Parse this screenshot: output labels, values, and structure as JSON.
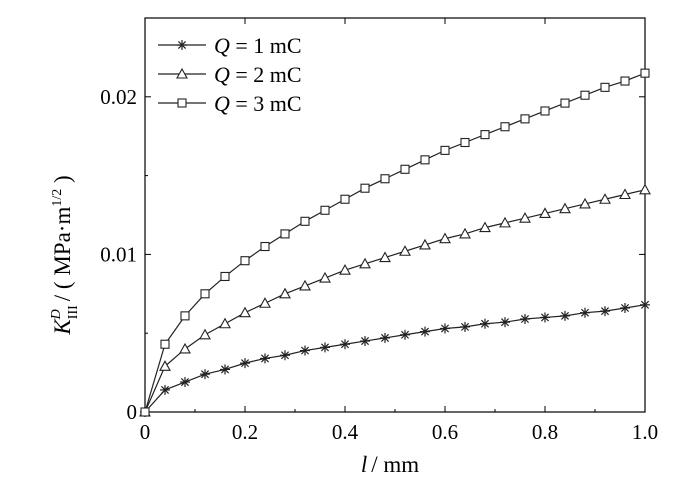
{
  "chart_data": {
    "type": "line",
    "xlabel_var": "l",
    "xlabel_unit": "/ mm",
    "ylabel_main": "K",
    "ylabel_sub": "III",
    "ylabel_sup": "D",
    "ylabel_unit": "/ ( MPa·m",
    "ylabel_unit_exp": "1/2",
    "ylabel_unit_close": " )",
    "xlim": [
      0,
      1.0
    ],
    "ylim": [
      0,
      0.025
    ],
    "xticks": [
      0,
      0.2,
      0.4,
      0.6,
      0.8,
      1.0
    ],
    "xtick_labels": [
      "0",
      "0.2",
      "0.4",
      "0.6",
      "0.8",
      "1.0"
    ],
    "yticks": [
      0,
      0.01,
      0.02
    ],
    "ytick_labels": [
      "0",
      "0.01",
      "0.02"
    ],
    "grid": false,
    "legend_position": "top-left",
    "x": [
      0,
      0.04,
      0.08,
      0.12,
      0.16,
      0.2,
      0.24,
      0.28,
      0.32,
      0.36,
      0.4,
      0.44,
      0.48,
      0.52,
      0.56,
      0.6,
      0.64,
      0.68,
      0.72,
      0.76,
      0.8,
      0.84,
      0.88,
      0.92,
      0.96,
      1.0
    ],
    "series": [
      {
        "name": "Q = 1 mC",
        "legend_var": "Q",
        "legend_rest": " = 1 mC",
        "marker": "star",
        "values": [
          0,
          0.0014,
          0.0019,
          0.0024,
          0.0027,
          0.0031,
          0.0034,
          0.0036,
          0.0039,
          0.0041,
          0.0043,
          0.0045,
          0.0047,
          0.0049,
          0.0051,
          0.0053,
          0.0054,
          0.0056,
          0.0057,
          0.0059,
          0.006,
          0.0061,
          0.0063,
          0.0064,
          0.0066,
          0.0068
        ]
      },
      {
        "name": "Q = 2 mC",
        "legend_var": "Q",
        "legend_rest": " = 2 mC",
        "marker": "triangle",
        "values": [
          0,
          0.0029,
          0.004,
          0.0049,
          0.0056,
          0.0063,
          0.0069,
          0.0075,
          0.008,
          0.0085,
          0.009,
          0.0094,
          0.0098,
          0.0102,
          0.0106,
          0.011,
          0.0113,
          0.0117,
          0.012,
          0.0123,
          0.0126,
          0.0129,
          0.0132,
          0.0135,
          0.0138,
          0.0141
        ]
      },
      {
        "name": "Q = 3 mC",
        "legend_var": "Q",
        "legend_rest": " = 3 mC",
        "marker": "square",
        "values": [
          0,
          0.0043,
          0.0061,
          0.0075,
          0.0086,
          0.0096,
          0.0105,
          0.0113,
          0.0121,
          0.0128,
          0.0135,
          0.0142,
          0.0148,
          0.0154,
          0.016,
          0.0166,
          0.0171,
          0.0176,
          0.0181,
          0.0186,
          0.0191,
          0.0196,
          0.0201,
          0.0206,
          0.021,
          0.0215
        ]
      }
    ]
  }
}
